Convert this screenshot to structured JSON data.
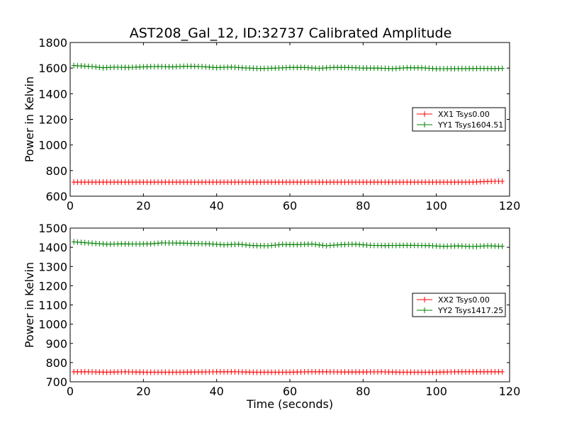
{
  "chart_data": {
    "type": "line",
    "title": "AST208_Gal_12, ID:32737 Calibrated Amplitude",
    "panels": [
      {
        "ylabel": "Power in Kelvin",
        "xlabel": "",
        "xlim": [
          0,
          120
        ],
        "ylim": [
          600,
          1800
        ],
        "xticks": [
          0,
          20,
          40,
          60,
          80,
          100,
          120
        ],
        "yticks": [
          600,
          800,
          1000,
          1200,
          1400,
          1600,
          1800
        ],
        "legend_position": "center-right",
        "series": [
          {
            "name": "XX1 Tsys0.00",
            "color": "#ff0000",
            "x": [
              1,
              5,
              10,
              15,
              20,
              25,
              30,
              35,
              40,
              45,
              50,
              55,
              60,
              65,
              70,
              75,
              80,
              85,
              90,
              95,
              100,
              105,
              110,
              112,
              115,
              118
            ],
            "y": [
              710,
              710,
              710,
              710,
              710,
              710,
              710,
              710,
              710,
              710,
              710,
              710,
              710,
              710,
              710,
              710,
              710,
              710,
              710,
              710,
              710,
              710,
              710,
              713,
              716,
              716
            ]
          },
          {
            "name": "YY1 Tsys1604.51",
            "color": "#008000",
            "x": [
              1,
              3,
              6,
              9,
              12,
              16,
              20,
              24,
              28,
              32,
              36,
              40,
              44,
              48,
              52,
              56,
              60,
              64,
              68,
              72,
              76,
              80,
              84,
              88,
              92,
              96,
              100,
              104,
              108,
              112,
              116,
              118
            ],
            "y": [
              1620,
              1617,
              1612,
              1603,
              1607,
              1605,
              1610,
              1613,
              1610,
              1615,
              1612,
              1604,
              1608,
              1601,
              1597,
              1600,
              1605,
              1605,
              1598,
              1606,
              1605,
              1600,
              1600,
              1596,
              1603,
              1602,
              1595,
              1596,
              1596,
              1598,
              1596,
              1598
            ]
          }
        ]
      },
      {
        "ylabel": "Power in Kelvin",
        "xlabel": "Time (seconds)",
        "xlim": [
          0,
          120
        ],
        "ylim": [
          700,
          1500
        ],
        "xticks": [
          0,
          20,
          40,
          60,
          80,
          100,
          120
        ],
        "yticks": [
          700,
          800,
          900,
          1000,
          1100,
          1200,
          1300,
          1400,
          1500
        ],
        "legend_position": "center-right",
        "series": [
          {
            "name": "XX2 Tsys0.00",
            "color": "#ff0000",
            "x": [
              1,
              5,
              10,
              15,
              20,
              25,
              30,
              35,
              40,
              45,
              50,
              55,
              60,
              65,
              70,
              75,
              80,
              85,
              90,
              95,
              100,
              105,
              110,
              115,
              118
            ],
            "y": [
              752,
              752,
              750,
              752,
              750,
              750,
              750,
              751,
              752,
              752,
              750,
              750,
              750,
              752,
              752,
              751,
              751,
              752,
              750,
              750,
              750,
              752,
              752,
              752,
              752
            ]
          },
          {
            "name": "YY2 Tsys1417.25",
            "color": "#008000",
            "x": [
              1,
              4,
              7,
              10,
              14,
              18,
              22,
              25,
              30,
              34,
              38,
              42,
              46,
              50,
              54,
              58,
              62,
              66,
              70,
              74,
              78,
              82,
              86,
              90,
              94,
              98,
              102,
              106,
              110,
              114,
              118
            ],
            "y": [
              1428,
              1424,
              1420,
              1416,
              1418,
              1417,
              1418,
              1423,
              1422,
              1420,
              1418,
              1413,
              1416,
              1409,
              1408,
              1415,
              1414,
              1417,
              1408,
              1414,
              1416,
              1410,
              1409,
              1410,
              1410,
              1409,
              1405,
              1407,
              1404,
              1408,
              1405
            ]
          }
        ]
      }
    ]
  }
}
